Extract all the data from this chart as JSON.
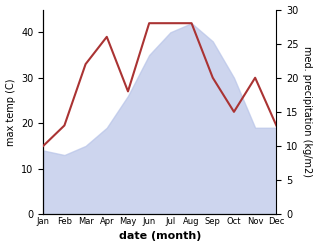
{
  "months": [
    "Jan",
    "Feb",
    "Mar",
    "Apr",
    "May",
    "Jun",
    "Jul",
    "Aug",
    "Sep",
    "Oct",
    "Nov",
    "Dec"
  ],
  "temp": [
    14,
    13,
    15,
    19,
    26,
    35,
    40,
    42,
    38,
    30,
    19,
    19
  ],
  "precip": [
    10,
    13,
    22,
    26,
    18,
    28,
    28,
    28,
    20,
    15,
    20,
    13
  ],
  "temp_fill_color": "#b8c4e8",
  "precip_color": "#aa3333",
  "ylabel_left": "max temp (C)",
  "ylabel_right": "med. precipitation (kg/m2)",
  "xlabel": "date (month)",
  "ylim_left": [
    0,
    45
  ],
  "ylim_right": [
    0,
    30
  ],
  "yticks_left": [
    0,
    10,
    20,
    30,
    40
  ],
  "yticks_right": [
    0,
    5,
    10,
    15,
    20,
    25,
    30
  ],
  "background_color": "#ffffff"
}
